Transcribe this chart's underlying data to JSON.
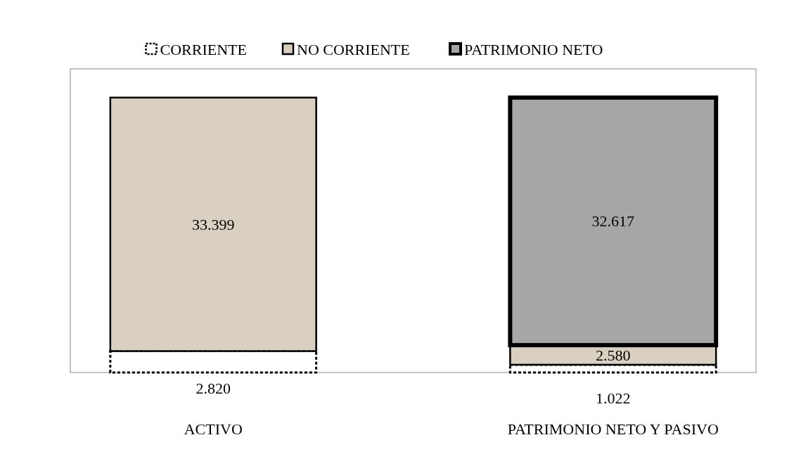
{
  "chart_data": {
    "type": "bar",
    "stacked": true,
    "categories": [
      "ACTIVO",
      "PATRIMONIO NETO Y PASIVO"
    ],
    "ylim": [
      0,
      40000
    ],
    "legend": "top",
    "series": [
      {
        "name": "CORRIENTE",
        "color": "#ffffff",
        "values": [
          2820,
          1022
        ],
        "value_labels": [
          "2.820",
          "1.022"
        ]
      },
      {
        "name": "NO CORRIENTE",
        "color": "#d9d0c1",
        "values": [
          33399,
          2580
        ],
        "value_labels": [
          "33.399",
          "2.580"
        ]
      },
      {
        "name": "PATRIMONIO NETO",
        "color": "#a6a6a6",
        "values": [
          null,
          32617
        ],
        "value_labels": [
          null,
          "32.617"
        ]
      }
    ]
  }
}
